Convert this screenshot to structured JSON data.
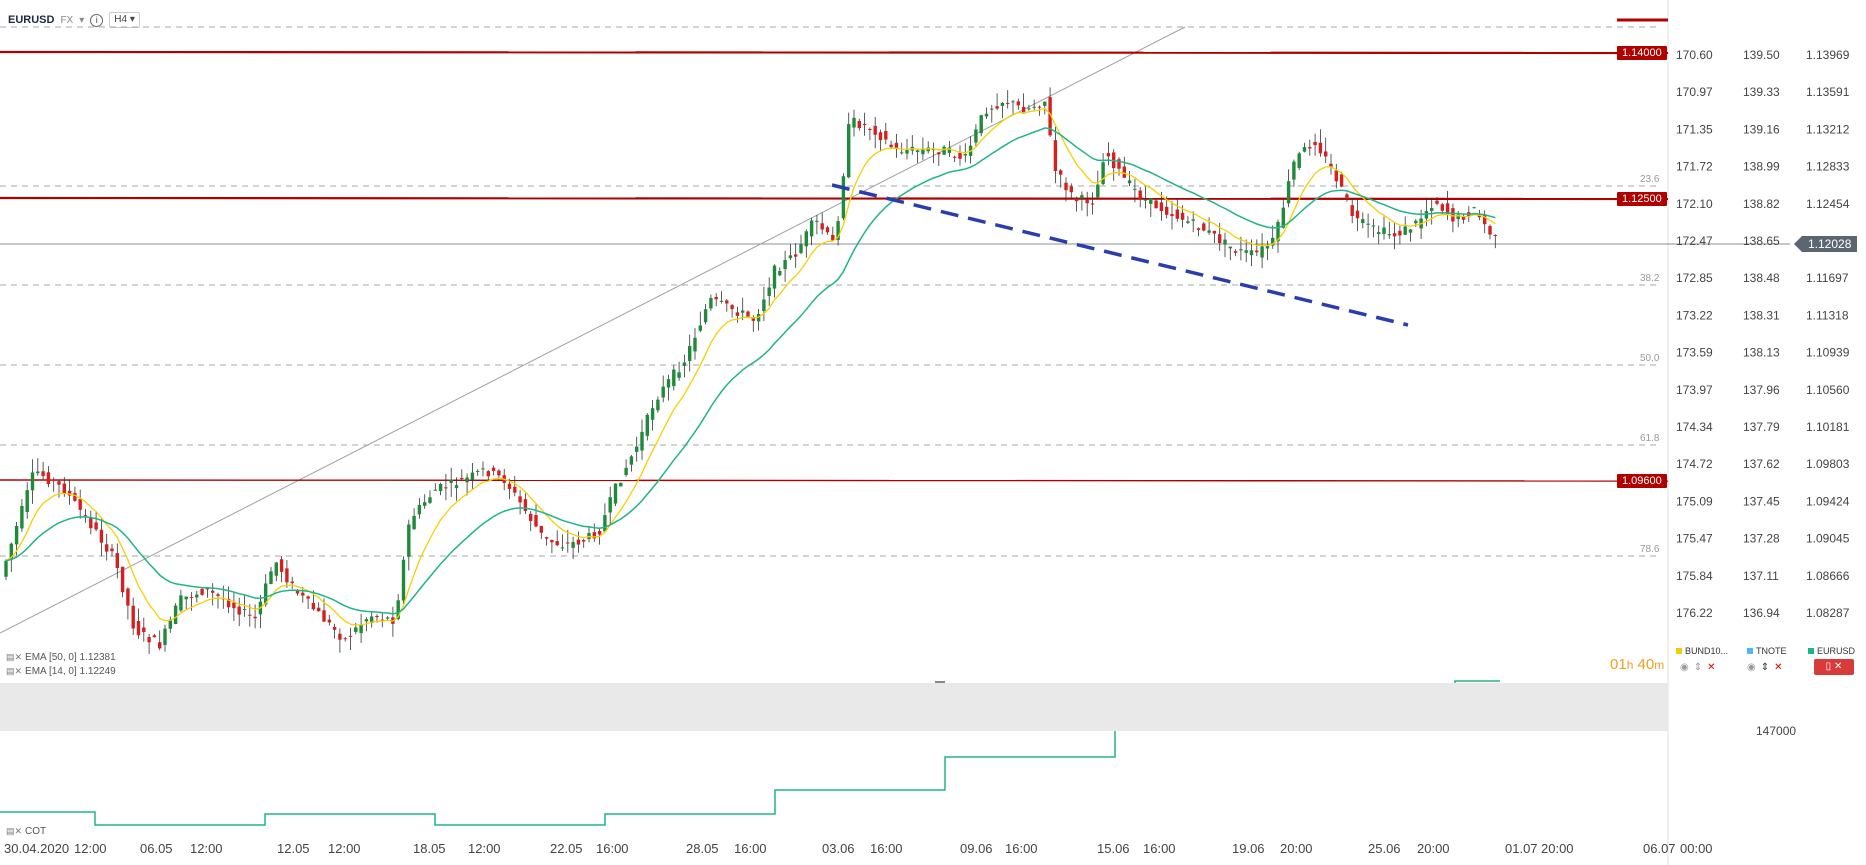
{
  "header": {
    "symbol": "EURUSD",
    "type": "FX",
    "timeframe": "H4"
  },
  "axes": {
    "col1": [
      "170.60",
      "170.97",
      "171.35",
      "171.72",
      "172.10",
      "172.47",
      "172.85",
      "173.22",
      "173.59",
      "173.97",
      "174.34",
      "174.72",
      "175.09",
      "175.47",
      "175.84",
      "176.22"
    ],
    "col2": [
      "139.50",
      "139.33",
      "139.16",
      "138.99",
      "138.82",
      "138.65",
      "138.48",
      "138.31",
      "138.13",
      "137.96",
      "137.79",
      "137.62",
      "137.45",
      "137.28",
      "137.11",
      "136.94"
    ],
    "col3": [
      "1.13969",
      "1.13591",
      "1.13212",
      "1.12833",
      "1.12454",
      "",
      "1.11697",
      "1.11318",
      "1.10939",
      "1.10560",
      "1.10181",
      "1.09803",
      "1.09424",
      "1.09045",
      "1.08666",
      "1.08287"
    ],
    "cot_value": "147000"
  },
  "levels": {
    "top": "1.14000",
    "mid": "1.12500",
    "low": "1.09600",
    "current": "1.12028"
  },
  "fib": {
    "f236": "23.6",
    "f382": "38.2",
    "f500": "50.0",
    "f618": "61.8",
    "f786": "78.6"
  },
  "indicators": {
    "ema50": "EMA [50, 0] 1.12381",
    "ema14": "EMA [14, 0] 1.12249",
    "cot": "COT"
  },
  "countdown": {
    "h": "01",
    "hu": "h",
    "m": "40",
    "mu": "m"
  },
  "legend": {
    "bund": "BUND10...",
    "tnote": "TNOTE",
    "eurusd": "EURUSD"
  },
  "xaxis": [
    "30.04.2020",
    "12:00",
    "06.05",
    "12:00",
    "12.05",
    "12:00",
    "18.05",
    "12:00",
    "22.05",
    "16:00",
    "28.05",
    "16:00",
    "03.06",
    "16:00",
    "09.06",
    "16:00",
    "15.06",
    "16:00",
    "19.06",
    "20:00",
    "25.06",
    "20:00",
    "01.07",
    "20:00",
    "06.07",
    "00:00"
  ],
  "colors": {
    "resistance": "#b00000",
    "ema14": "#f5d000",
    "ema50": "#1fb58a",
    "trend": "#2a3db0",
    "candle_up": "#1e8a3a",
    "candle_down": "#d62020"
  }
}
